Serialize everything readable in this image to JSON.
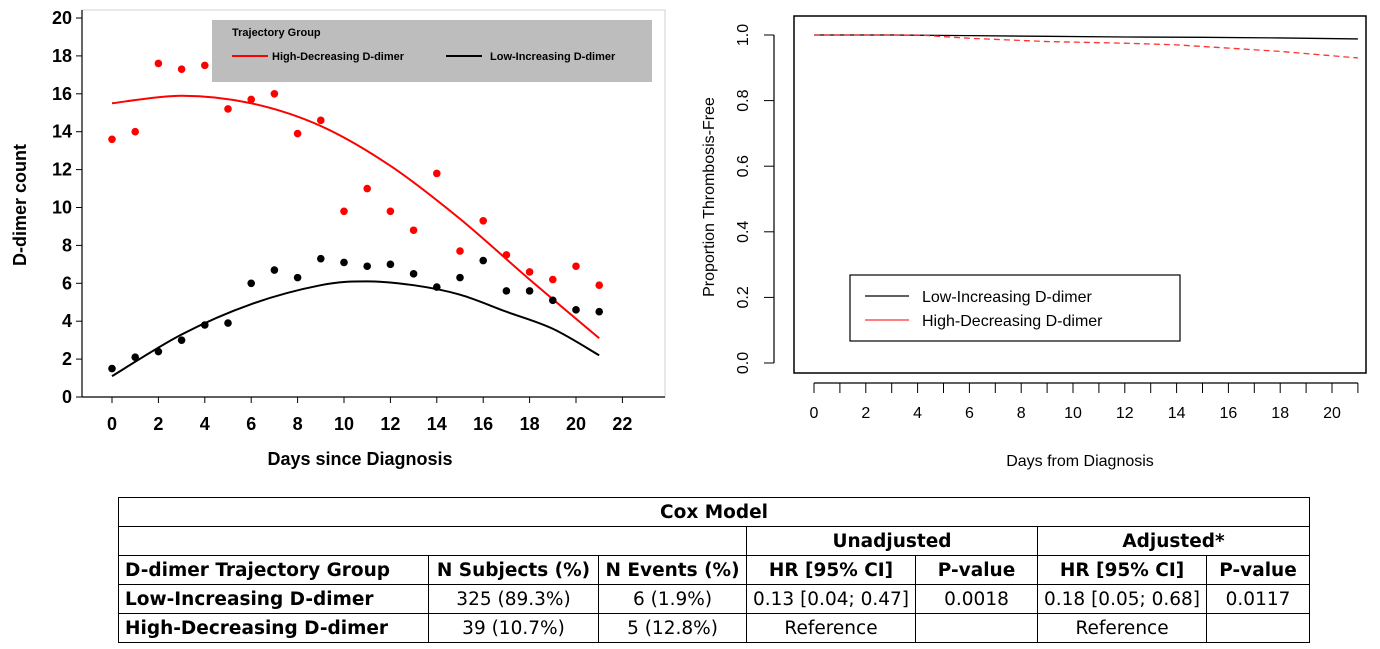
{
  "chart_data": [
    {
      "type": "scatter",
      "xlabel": "Days since Diagnosis",
      "ylabel": "D-dimer count",
      "xlim": [
        -1,
        23
      ],
      "ylim": [
        0,
        20
      ],
      "xticks": [
        0,
        2,
        4,
        6,
        8,
        10,
        12,
        14,
        16,
        18,
        20,
        22
      ],
      "yticks": [
        0,
        2,
        4,
        6,
        8,
        10,
        12,
        14,
        16,
        18,
        20
      ],
      "grid": false,
      "legend": {
        "title": "Trajectory Group",
        "position": "top-right",
        "entries": [
          "High-Decreasing D-dimer",
          "Low-Increasing D-dimer"
        ]
      },
      "series": [
        {
          "name": "High-Decreasing D-dimer",
          "color": "#ff0000",
          "x": [
            0,
            1,
            2,
            3,
            4,
            5,
            6,
            7,
            8,
            9,
            10,
            11,
            12,
            13,
            14,
            15,
            16,
            17,
            18,
            19,
            20,
            21
          ],
          "y": [
            13.6,
            14.0,
            17.6,
            17.3,
            17.5,
            15.2,
            15.7,
            16.0,
            13.9,
            14.6,
            9.8,
            11.0,
            9.8,
            8.8,
            11.8,
            7.7,
            9.3,
            7.5,
            6.6,
            6.2,
            6.9,
            5.9
          ],
          "fit": {
            "x": [
              0,
              3,
              6,
              9,
              12,
              15,
              18,
              21
            ],
            "y": [
              15.5,
              15.9,
              15.5,
              14.3,
              12.2,
              9.4,
              6.2,
              3.1
            ]
          }
        },
        {
          "name": "Low-Increasing D-dimer",
          "color": "#000000",
          "x": [
            0,
            1,
            2,
            3,
            4,
            5,
            6,
            7,
            8,
            9,
            10,
            11,
            12,
            13,
            14,
            15,
            16,
            17,
            18,
            19,
            20,
            21
          ],
          "y": [
            1.5,
            2.1,
            2.4,
            3.0,
            3.8,
            3.9,
            6.0,
            6.7,
            6.3,
            7.3,
            7.1,
            6.9,
            7.0,
            6.5,
            5.8,
            6.3,
            7.2,
            5.6,
            5.6,
            5.1,
            4.6,
            4.5
          ],
          "fit": {
            "x": [
              0,
              3,
              6,
              9,
              11,
              13,
              15,
              17,
              19,
              21
            ],
            "y": [
              1.1,
              3.3,
              4.9,
              5.9,
              6.1,
              5.9,
              5.4,
              4.5,
              3.6,
              2.2
            ]
          }
        }
      ]
    },
    {
      "type": "line",
      "xlabel": "Days from Diagnosis",
      "ylabel": "Proportion Thrombosis-Free",
      "xlim": [
        0,
        21
      ],
      "ylim": [
        0,
        1
      ],
      "xticks": [
        0,
        2,
        4,
        6,
        8,
        10,
        12,
        14,
        16,
        18,
        20
      ],
      "yticks": [
        "0.0",
        "0.2",
        "0.4",
        "0.6",
        "0.8",
        "1.0"
      ],
      "grid": false,
      "legend": {
        "position": "bottom-left"
      },
      "series": [
        {
          "name": "Low-Increasing D-dimer",
          "color": "#000000",
          "style": "solid",
          "x": [
            0,
            3,
            6,
            9,
            12,
            15,
            18,
            21
          ],
          "y": [
            1.0,
            1.0,
            0.998,
            0.996,
            0.994,
            0.993,
            0.991,
            0.988
          ]
        },
        {
          "name": "High-Decreasing D-dimer",
          "color": "#ff3333",
          "style": "dashed",
          "x": [
            0,
            4,
            6,
            9,
            12,
            14,
            16,
            18,
            21
          ],
          "y": [
            1.0,
            1.0,
            0.99,
            0.98,
            0.975,
            0.97,
            0.96,
            0.95,
            0.93
          ]
        }
      ]
    }
  ],
  "table": {
    "title": "Cox Model",
    "group_headers": [
      "Unadjusted",
      "Adjusted*"
    ],
    "columns": [
      "D-dimer Trajectory Group",
      "N Subjects (%)",
      "N Events (%)",
      "HR [95% CI]",
      "P-value",
      "HR [95% CI]",
      "P-value"
    ],
    "rows": [
      [
        "Low-Increasing D-dimer",
        "325 (89.3%)",
        "6 (1.9%)",
        "0.13 [0.04; 0.47]",
        "0.0018",
        "0.18 [0.05; 0.68]",
        "0.0117"
      ],
      [
        "High-Decreasing D-dimer",
        "39 (10.7%)",
        "5 (12.8%)",
        "Reference",
        "",
        "Reference",
        ""
      ]
    ]
  }
}
